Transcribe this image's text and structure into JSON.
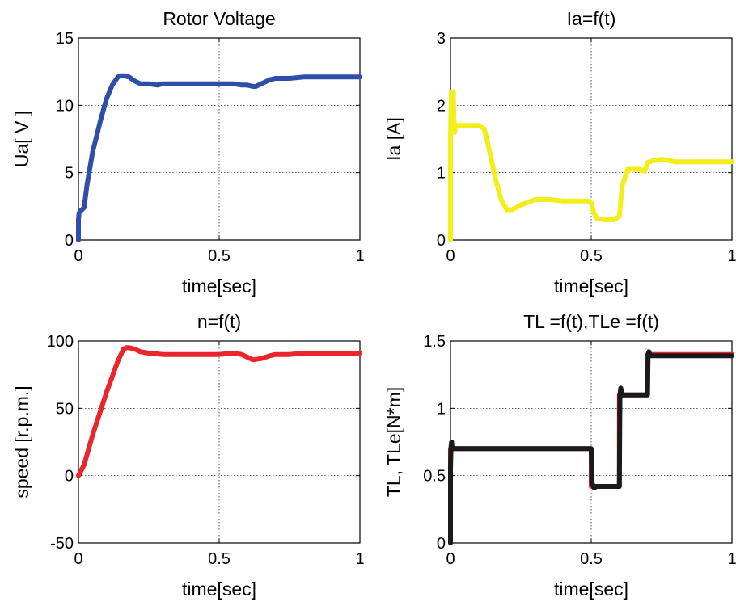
{
  "chart_data": [
    {
      "type": "line",
      "title": "Rotor Voltage",
      "xlabel": "time[sec]",
      "ylabel": "Ua[ V ]",
      "xlim": [
        0,
        1
      ],
      "ylim": [
        0,
        15
      ],
      "xticks": [
        0,
        0.5,
        1
      ],
      "xtick_labels": [
        "0",
        "0.5",
        "1"
      ],
      "yticks": [
        0,
        5,
        10,
        15
      ],
      "ytick_labels": [
        "0",
        "5",
        "10",
        "15"
      ],
      "grid": "dotted",
      "series": [
        {
          "color": "#2f4ea8",
          "x": [
            0,
            0,
            0.002,
            0.005,
            0.01,
            0.015,
            0.02,
            0.03,
            0.05,
            0.08,
            0.1,
            0.12,
            0.14,
            0.15,
            0.16,
            0.18,
            0.2,
            0.22,
            0.25,
            0.28,
            0.3,
            0.35,
            0.4,
            0.45,
            0.5,
            0.55,
            0.58,
            0.6,
            0.62,
            0.63,
            0.65,
            0.68,
            0.7,
            0.75,
            0.8,
            0.9,
            1.0
          ],
          "y": [
            0,
            1.5,
            2.0,
            2.1,
            2.2,
            2.3,
            2.4,
            4.0,
            6.5,
            9.0,
            10.5,
            11.5,
            12.1,
            12.2,
            12.2,
            12.1,
            11.8,
            11.6,
            11.6,
            11.5,
            11.6,
            11.6,
            11.6,
            11.6,
            11.6,
            11.6,
            11.5,
            11.5,
            11.4,
            11.4,
            11.6,
            11.9,
            12.0,
            12.0,
            12.1,
            12.1,
            12.1
          ]
        }
      ]
    },
    {
      "type": "line",
      "title": "Ia=f(t)",
      "xlabel": "time[sec]",
      "ylabel": "Ia [A]",
      "xlim": [
        0,
        1
      ],
      "ylim": [
        0,
        3
      ],
      "xticks": [
        0,
        0.5,
        1
      ],
      "xtick_labels": [
        "0",
        "0.5",
        "1"
      ],
      "yticks": [
        0,
        1,
        2,
        3
      ],
      "ytick_labels": [
        "0",
        "1",
        "2",
        "3"
      ],
      "grid": "dotted",
      "series": [
        {
          "color": "#f2ee1e",
          "x": [
            0,
            0,
            0.003,
            0.005,
            0.008,
            0.01,
            0.012,
            0.015,
            0.02,
            0.03,
            0.05,
            0.1,
            0.12,
            0.14,
            0.16,
            0.18,
            0.2,
            0.22,
            0.25,
            0.3,
            0.35,
            0.4,
            0.45,
            0.49,
            0.5,
            0.51,
            0.52,
            0.55,
            0.58,
            0.6,
            0.61,
            0.63,
            0.65,
            0.67,
            0.69,
            0.7,
            0.72,
            0.75,
            0.8,
            0.9,
            1.0
          ],
          "y": [
            0,
            1.5,
            2.2,
            2.1,
            1.8,
            2.2,
            1.8,
            1.6,
            1.7,
            1.7,
            1.7,
            1.7,
            1.65,
            1.3,
            0.9,
            0.6,
            0.45,
            0.45,
            0.52,
            0.6,
            0.6,
            0.58,
            0.58,
            0.58,
            0.55,
            0.4,
            0.32,
            0.3,
            0.3,
            0.35,
            0.8,
            1.05,
            1.05,
            1.05,
            1.02,
            1.15,
            1.18,
            1.2,
            1.16,
            1.16,
            1.16
          ]
        }
      ]
    },
    {
      "type": "line",
      "title": "n=f(t)",
      "xlabel": "time[sec]",
      "ylabel": "speed [r.p.m.]",
      "xlim": [
        0,
        1
      ],
      "ylim": [
        -50,
        100
      ],
      "xticks": [
        0,
        0.5,
        1
      ],
      "xtick_labels": [
        "0",
        "0.5",
        "1"
      ],
      "yticks": [
        -50,
        0,
        50,
        100
      ],
      "ytick_labels": [
        "-50",
        "0",
        "50",
        "100"
      ],
      "grid": "dotted",
      "series": [
        {
          "color": "#e8262c",
          "x": [
            0,
            0.02,
            0.05,
            0.1,
            0.14,
            0.16,
            0.17,
            0.18,
            0.2,
            0.22,
            0.25,
            0.3,
            0.35,
            0.4,
            0.45,
            0.5,
            0.55,
            0.58,
            0.6,
            0.62,
            0.65,
            0.68,
            0.7,
            0.75,
            0.8,
            0.9,
            1.0
          ],
          "y": [
            0,
            8,
            30,
            62,
            85,
            94,
            95,
            95,
            94,
            92,
            91,
            90,
            90,
            90,
            90,
            90,
            91,
            90,
            88,
            86,
            87,
            89,
            90,
            90,
            91,
            91,
            91
          ]
        }
      ]
    },
    {
      "type": "line",
      "title": "TL =f(t),TLe =f(t)",
      "xlabel": "time[sec]",
      "ylabel": "TL, TLe[N*m]",
      "xlim": [
        0,
        1
      ],
      "ylim": [
        0,
        1.5
      ],
      "xticks": [
        0,
        0.5,
        1
      ],
      "xtick_labels": [
        "0",
        "0.5",
        "1"
      ],
      "yticks": [
        0,
        0.5,
        1,
        1.5
      ],
      "ytick_labels": [
        "0",
        "0.5",
        "1",
        "1.5"
      ],
      "grid": "dotted",
      "series": [
        {
          "color": "#e8262c",
          "x": [
            0,
            0,
            0.5,
            0.5,
            0.6,
            0.6,
            0.7,
            0.7,
            1.0
          ],
          "y": [
            0,
            0.7,
            0.7,
            0.42,
            0.42,
            1.1,
            1.1,
            1.4,
            1.4
          ]
        },
        {
          "color": "#1a1a1a",
          "x": [
            0,
            0,
            0.002,
            0.004,
            0.006,
            0.01,
            0.02,
            0.5,
            0.502,
            0.51,
            0.52,
            0.6,
            0.602,
            0.605,
            0.61,
            0.7,
            0.702,
            0.705,
            0.71,
            1.0
          ],
          "y": [
            0,
            0.55,
            0.72,
            0.75,
            0.7,
            0.7,
            0.7,
            0.7,
            0.45,
            0.41,
            0.42,
            0.42,
            1.1,
            1.15,
            1.1,
            1.1,
            1.4,
            1.42,
            1.39,
            1.39
          ]
        }
      ]
    }
  ]
}
